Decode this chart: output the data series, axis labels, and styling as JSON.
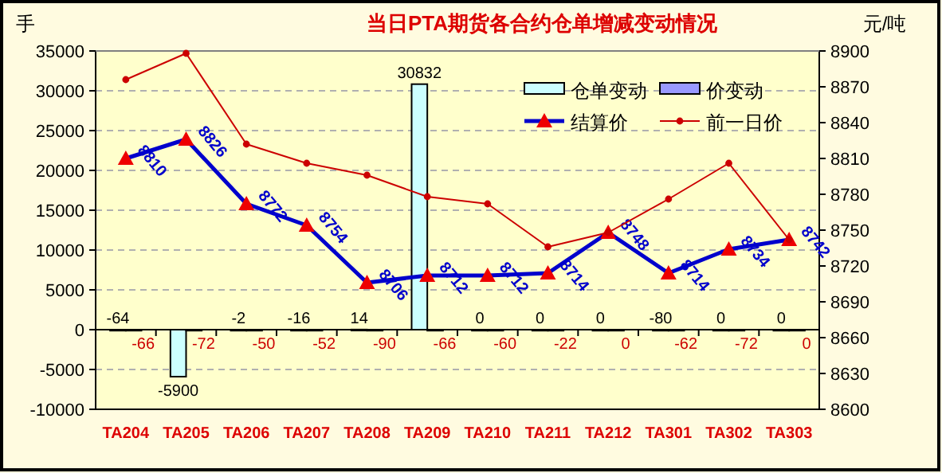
{
  "chart_data": {
    "type": "bar",
    "title": "当日PTA期货各合约仓单增减变动情况",
    "ylabel": "手",
    "y2label": "元/吨",
    "categories": [
      "TA204",
      "TA205",
      "TA206",
      "TA207",
      "TA208",
      "TA209",
      "TA210",
      "TA211",
      "TA212",
      "TA301",
      "TA302",
      "TA303"
    ],
    "series": [
      {
        "name": "仓单变动",
        "color": "#ccffff",
        "axis": "y",
        "values": [
          -64,
          -5900,
          -2,
          -16,
          14,
          30832,
          0,
          0,
          0,
          -80,
          0,
          0
        ],
        "value_labels": [
          "-64",
          "-5900",
          "-2",
          "-16",
          "14",
          "30832",
          "0",
          "0",
          "0",
          "-80",
          "0",
          "0"
        ]
      },
      {
        "name": "价变动",
        "color": "#9999ff",
        "axis": "y",
        "values": [
          -66,
          -72,
          -50,
          -52,
          -90,
          -66,
          -60,
          -22,
          0,
          -62,
          -72,
          0
        ],
        "value_labels": [
          "-66",
          "-72",
          "-50",
          "-52",
          "-90",
          "-66",
          "-60",
          "-22",
          "0",
          "-62",
          "-72",
          "0"
        ]
      },
      {
        "name": "结算价",
        "type": "line",
        "color": "#0000cc",
        "axis": "y2",
        "marker": "triangle",
        "values": [
          8810,
          8826,
          8772,
          8754,
          8706,
          8712,
          8712,
          8714,
          8748,
          8714,
          8734,
          8742
        ],
        "value_labels": [
          "8810",
          "8826",
          "8772",
          "8754",
          "8706",
          "8712",
          "8712",
          "8714",
          "8748",
          "8714",
          "8734",
          "8742"
        ]
      },
      {
        "name": "前一日价",
        "type": "line",
        "color": "#cc0000",
        "axis": "y2",
        "marker": "circle",
        "values": [
          8876,
          8898,
          8822,
          8806,
          8796,
          8778,
          8772,
          8736,
          8748,
          8776,
          8806,
          8742
        ]
      }
    ],
    "ylim": [
      -10000,
      35000
    ],
    "yticks": [
      -10000,
      -5000,
      0,
      5000,
      10000,
      15000,
      20000,
      25000,
      30000,
      35000
    ],
    "y2lim": [
      8600,
      8900
    ],
    "y2ticks": [
      8600,
      8630,
      8660,
      8690,
      8720,
      8750,
      8780,
      8810,
      8840,
      8870,
      8900
    ],
    "grid": "y",
    "legend": "top right"
  }
}
